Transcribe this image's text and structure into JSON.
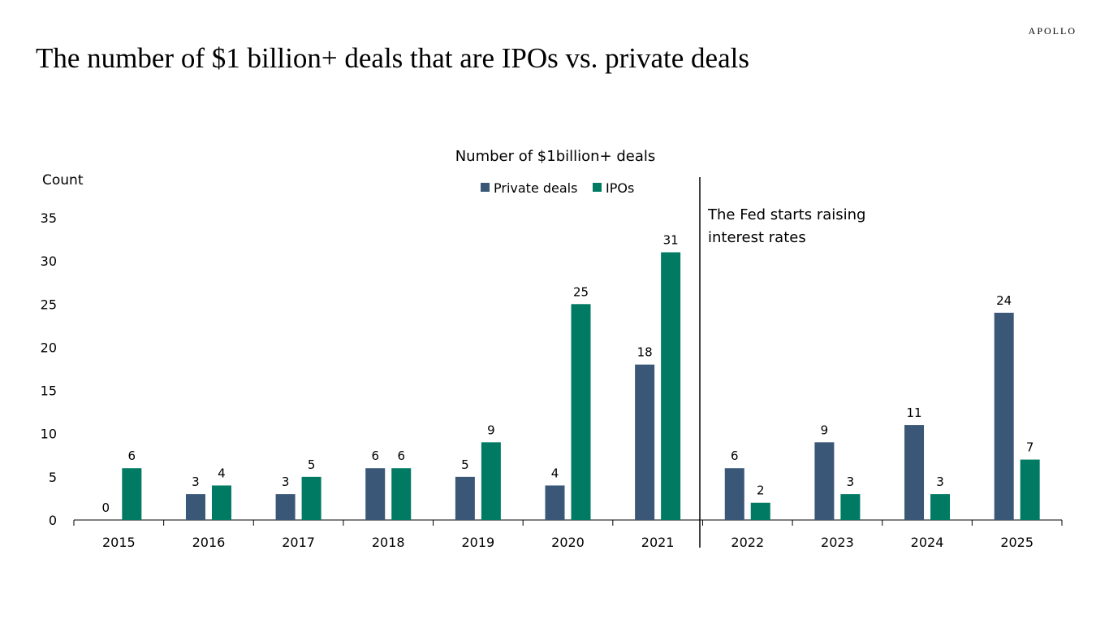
{
  "title": "The number of $1 billion+ deals that are IPOs vs. private deals",
  "logo": "APOLLO",
  "chart_data": {
    "type": "bar",
    "title": "Number of $1billion+ deals",
    "ylabel": "Count",
    "xlabel": "",
    "ylim": [
      0,
      35
    ],
    "yticks": [
      0,
      5,
      10,
      15,
      20,
      25,
      30,
      35
    ],
    "grid": false,
    "legend": "top-center",
    "categories": [
      "2015",
      "2016",
      "2017",
      "2018",
      "2019",
      "2020",
      "2021",
      "2022",
      "2023",
      "2024",
      "2025"
    ],
    "series": [
      {
        "name": "Private deals",
        "color": "#3a5778",
        "values": [
          0,
          3,
          3,
          6,
          5,
          4,
          18,
          6,
          9,
          11,
          24
        ]
      },
      {
        "name": "IPOs",
        "color": "#007a62",
        "values": [
          6,
          4,
          5,
          6,
          9,
          25,
          31,
          2,
          3,
          3,
          7
        ]
      }
    ],
    "annotation": {
      "line1": "The Fed starts raising",
      "line2": "interest rates",
      "between": [
        "2021",
        "2022"
      ]
    }
  }
}
